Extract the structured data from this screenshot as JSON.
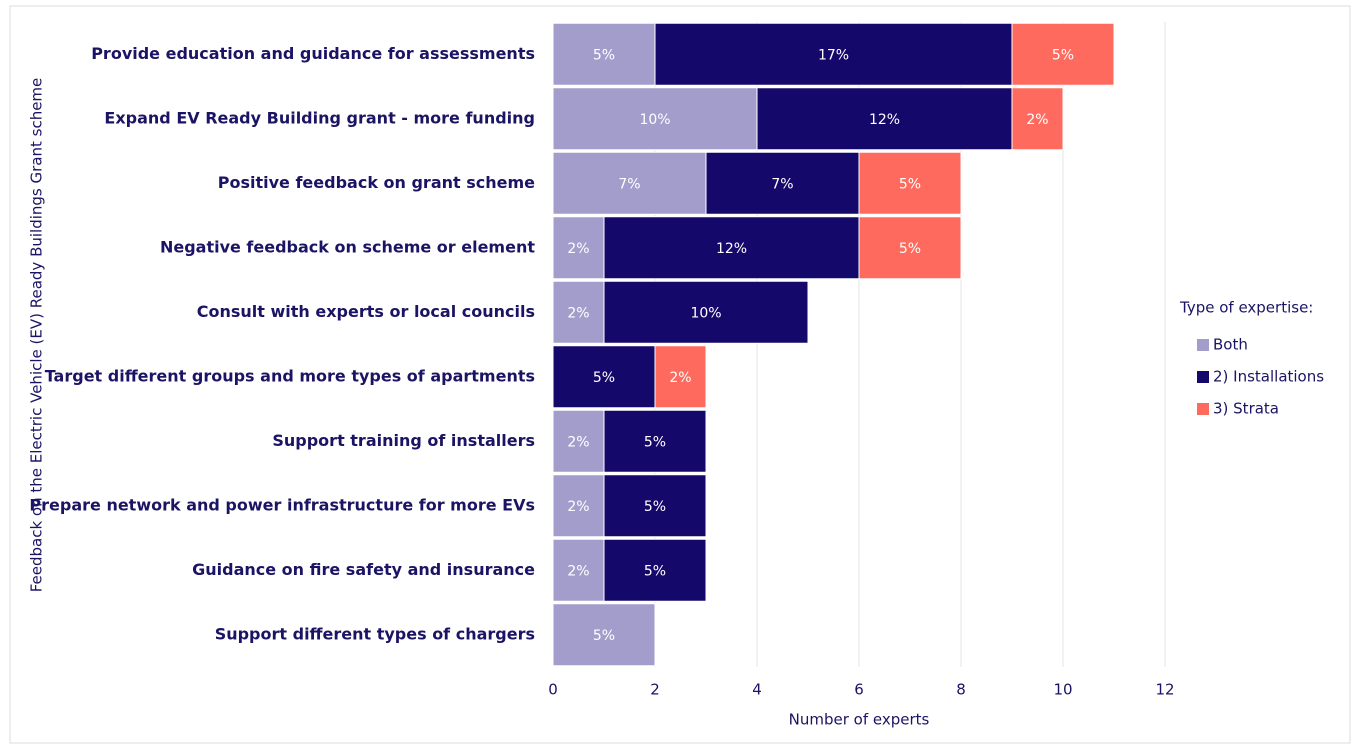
{
  "chart_data": {
    "type": "hbar_stacked",
    "y_axis_label": "Feedback on the Electric Vehicle (EV) Ready Buildings Grant scheme",
    "x_axis_label": "Number of experts",
    "legend_title": "Type of expertise:",
    "categories": [
      "Provide education and guidance for assessments",
      "Expand EV Ready Building grant - more funding",
      "Positive feedback on grant scheme",
      "Negative feedback on scheme or element",
      "Consult with experts or local councils",
      "Target different groups and more types of apartments",
      "Support training of installers",
      "Prepare network and power infrastructure for more EVs",
      "Guidance on fire safety and insurance",
      "Support different types of chargers"
    ],
    "series": [
      {
        "name": "Both",
        "color": "#a39dcb",
        "values": [
          2,
          4,
          3,
          1,
          1,
          null,
          1,
          1,
          1,
          2
        ],
        "value_labels": [
          "5%",
          "10%",
          "7%",
          "2%",
          "2%",
          null,
          "2%",
          "2%",
          "2%",
          "5%"
        ]
      },
      {
        "name": "2) Installations",
        "color": "#14096b",
        "values": [
          7,
          5,
          3,
          5,
          4,
          2,
          2,
          2,
          2,
          null
        ],
        "value_labels": [
          "17%",
          "12%",
          "7%",
          "12%",
          "10%",
          "5%",
          "5%",
          "5%",
          "5%",
          null
        ]
      },
      {
        "name": "3) Strata",
        "color": "#ff6a5e",
        "values": [
          2,
          1,
          2,
          2,
          null,
          1,
          null,
          null,
          null,
          null
        ],
        "value_labels": [
          "5%",
          "2%",
          "5%",
          "5%",
          null,
          "2%",
          null,
          null,
          null,
          null
        ]
      }
    ],
    "xlim": [
      0,
      12
    ],
    "xticks": [
      0,
      2,
      4,
      6,
      8,
      10,
      12
    ],
    "grid": true
  }
}
